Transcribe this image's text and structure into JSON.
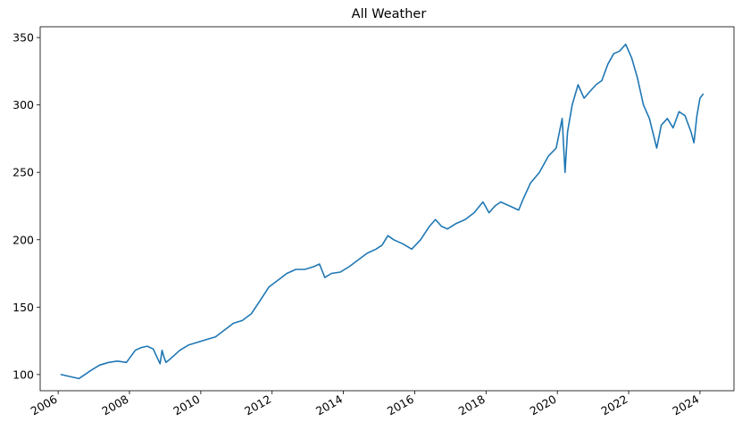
{
  "chart_data": {
    "type": "line",
    "title": "All Weather",
    "xlabel": "",
    "ylabel": "",
    "x_tick_labels": [
      "2006",
      "2008",
      "2010",
      "2012",
      "2014",
      "2016",
      "2018",
      "2020",
      "2022",
      "2024"
    ],
    "y_tick_labels": [
      "100",
      "150",
      "200",
      "250",
      "300",
      "350"
    ],
    "xlim": [
      "2005-07-01",
      "2024-12-15"
    ],
    "ylim": [
      88,
      358
    ],
    "grid": false,
    "legend": "none",
    "series": [
      {
        "color": "#1f77b4",
        "x": [
          "2006-02-01",
          "2006-04-01",
          "2006-06-01",
          "2006-08-01",
          "2006-10-01",
          "2006-12-01",
          "2007-03-01",
          "2007-06-01",
          "2007-09-01",
          "2007-12-01",
          "2008-03-01",
          "2008-05-01",
          "2008-07-01",
          "2008-09-01",
          "2008-10-15",
          "2008-11-10",
          "2008-12-01",
          "2008-12-20",
          "2009-01-10",
          "2009-03-01",
          "2009-06-01",
          "2009-09-01",
          "2009-12-01",
          "2010-03-01",
          "2010-06-01",
          "2010-09-01",
          "2010-12-01",
          "2011-03-01",
          "2011-06-01",
          "2011-09-01",
          "2011-12-01",
          "2012-03-01",
          "2012-06-01",
          "2012-09-01",
          "2012-12-01",
          "2013-03-01",
          "2013-05-01",
          "2013-06-25",
          "2013-09-01",
          "2013-12-01",
          "2014-03-01",
          "2014-06-01",
          "2014-09-01",
          "2014-12-01",
          "2015-02-01",
          "2015-04-01",
          "2015-06-01",
          "2015-09-01",
          "2015-12-01",
          "2016-03-01",
          "2016-06-01",
          "2016-08-01",
          "2016-10-01",
          "2016-12-01",
          "2017-03-01",
          "2017-06-01",
          "2017-09-01",
          "2017-12-01",
          "2018-02-01",
          "2018-04-01",
          "2018-06-01",
          "2018-09-01",
          "2018-12-01",
          "2019-01-15",
          "2019-04-01",
          "2019-07-01",
          "2019-10-01",
          "2019-12-20",
          "2020-02-20",
          "2020-03-20",
          "2020-04-15",
          "2020-06-01",
          "2020-08-01",
          "2020-10-01",
          "2020-12-01",
          "2021-02-01",
          "2021-04-01",
          "2021-06-01",
          "2021-08-01",
          "2021-10-01",
          "2021-12-01",
          "2022-02-01",
          "2022-04-01",
          "2022-06-01",
          "2022-08-01",
          "2022-10-15",
          "2022-12-01",
          "2023-02-01",
          "2023-04-01",
          "2023-06-01",
          "2023-08-01",
          "2023-10-01",
          "2023-11-01",
          "2023-12-01",
          "2024-01-01",
          "2024-02-01"
        ],
        "values": [
          100,
          99,
          98,
          97,
          100,
          103,
          107,
          109,
          110,
          109,
          118,
          120,
          121,
          119,
          112,
          108,
          118,
          113,
          109,
          112,
          118,
          122,
          124,
          126,
          128,
          133,
          138,
          140,
          145,
          155,
          165,
          170,
          175,
          178,
          178,
          180,
          182,
          172,
          175,
          176,
          180,
          185,
          190,
          193,
          196,
          203,
          200,
          197,
          193,
          200,
          210,
          215,
          210,
          208,
          212,
          215,
          220,
          228,
          220,
          225,
          228,
          225,
          222,
          230,
          242,
          250,
          262,
          268,
          290,
          250,
          280,
          300,
          315,
          305,
          310,
          315,
          318,
          330,
          338,
          340,
          345,
          335,
          320,
          300,
          290,
          268,
          285,
          290,
          283,
          295,
          292,
          280,
          272,
          292,
          305,
          308
        ]
      }
    ]
  }
}
